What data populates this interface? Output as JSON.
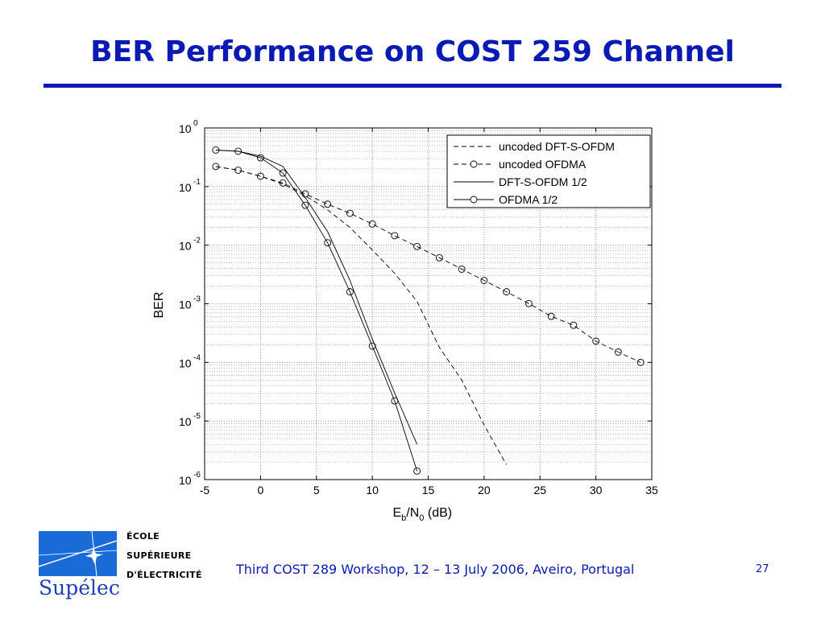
{
  "slide": {
    "title": "BER Performance on COST 259 Channel",
    "footer": "Third COST 289 Workshop, 12 – 13 July 2006,  Aveiro, Portugal",
    "page_number": "27",
    "logo": {
      "word": "Supélec",
      "school_lines": [
        "ÉCOLE",
        "SUPÉRIEURE",
        "D'ÉLECTRICITÉ"
      ]
    },
    "colors": {
      "title": "#0a1ab4",
      "rule": "#0a1ab4",
      "logo": "#1a6bd8"
    }
  },
  "chart_data": {
    "type": "line",
    "title": "",
    "xlabel": "E_b/N_0 (dB)",
    "ylabel": "BER",
    "xlim": [
      -5,
      35
    ],
    "ylim": [
      1e-06,
      1
    ],
    "yscale": "log",
    "xticks": [
      -5,
      0,
      5,
      10,
      15,
      20,
      25,
      30,
      35
    ],
    "yticks_exponents": [
      0,
      -1,
      -2,
      -3,
      -4,
      -5,
      -6
    ],
    "grid": true,
    "legend_position": "top-right",
    "series": [
      {
        "name": "uncoded DFT-S-OFDM",
        "style": "dashed",
        "marker": "none",
        "x": [
          -4,
          -2,
          0,
          2,
          4,
          6,
          8,
          10,
          12,
          14,
          16,
          18,
          20,
          22
        ],
        "y": [
          0.22,
          0.19,
          0.15,
          0.11,
          0.07,
          0.04,
          0.02,
          0.0083,
          0.0033,
          0.0011,
          0.00018,
          5e-05,
          8.5e-06,
          1.8e-06
        ]
      },
      {
        "name": "uncoded OFDMA",
        "style": "dashed",
        "marker": "circle",
        "x": [
          -4,
          -2,
          0,
          2,
          4,
          6,
          8,
          10,
          12,
          14,
          16,
          18,
          20,
          22,
          24,
          26,
          28,
          30,
          32,
          34
        ],
        "y": [
          0.22,
          0.19,
          0.15,
          0.115,
          0.075,
          0.05,
          0.035,
          0.023,
          0.0145,
          0.0095,
          0.0061,
          0.0039,
          0.0025,
          0.0016,
          0.00101,
          0.00061,
          0.00043,
          0.00023,
          0.00015,
          0.0001
        ]
      },
      {
        "name": "DFT-S-OFDM 1/2",
        "style": "solid",
        "marker": "none",
        "x": [
          -4,
          -2,
          0,
          2,
          4,
          6,
          8,
          10,
          12,
          14
        ],
        "y": [
          0.42,
          0.4,
          0.33,
          0.22,
          0.065,
          0.017,
          0.0025,
          0.00025,
          3e-05,
          4e-06
        ]
      },
      {
        "name": "OFDMA 1/2",
        "style": "solid",
        "marker": "circle",
        "x": [
          -4,
          -2,
          0,
          2,
          4,
          6,
          8,
          10,
          12,
          14
        ],
        "y": [
          0.42,
          0.4,
          0.31,
          0.17,
          0.048,
          0.011,
          0.0016,
          0.00019,
          2.2e-05,
          1.4e-06
        ]
      }
    ]
  }
}
